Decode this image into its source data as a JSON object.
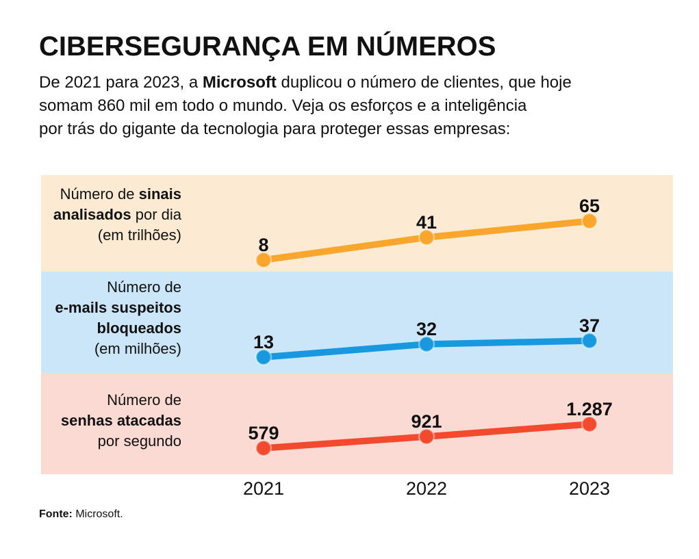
{
  "header": {
    "title": "CIBERSEGURANÇA EM NÚMEROS",
    "intro": {
      "line1_pre": "De 2021 para 2023, a ",
      "line1_bold": "Microsoft",
      "line1_post": " duplicou o número de clientes, que hoje",
      "line2": "somam 860 mil em todo o mundo. Veja os esforços e a inteligência",
      "line3": "por trás do gigante da tecnologia para proteger essas empresas:"
    }
  },
  "chart_data": {
    "type": "line",
    "categories": [
      "2021",
      "2022",
      "2023"
    ],
    "grid": false,
    "legend_position": "row-labels-left",
    "series": [
      {
        "name": "sinais-analisados",
        "label_lines": [
          [
            {
              "text": "Número de ",
              "bold": false
            },
            {
              "text": "sinais",
              "bold": true
            }
          ],
          [
            {
              "text": "analisados",
              "bold": true
            },
            {
              "text": " por dia",
              "bold": false
            }
          ],
          [
            {
              "text": "(em trilhões)",
              "bold": false
            }
          ]
        ],
        "values": [
          8,
          41,
          65
        ],
        "value_labels": [
          "8",
          "41",
          "65"
        ],
        "line_color": "#F8A62C",
        "band_color": "#FCEBD2"
      },
      {
        "name": "emails-suspeitos-bloqueados",
        "label_lines": [
          [
            {
              "text": "Número de",
              "bold": false
            }
          ],
          [
            {
              "text": "e-mails suspeitos",
              "bold": true
            }
          ],
          [
            {
              "text": "bloqueados",
              "bold": true
            }
          ],
          [
            {
              "text": "(em milhões)",
              "bold": false
            }
          ]
        ],
        "values": [
          13,
          32,
          37
        ],
        "value_labels": [
          "13",
          "32",
          "37"
        ],
        "line_color": "#1899DF",
        "band_color": "#CBE6F8"
      },
      {
        "name": "senhas-atacadas",
        "label_lines": [
          [
            {
              "text": "Número de",
              "bold": false
            }
          ],
          [
            {
              "text": "senhas atacadas",
              "bold": true
            }
          ],
          [
            {
              "text": "por segundo",
              "bold": false
            }
          ]
        ],
        "values": [
          579,
          921,
          1287
        ],
        "value_labels": [
          "579",
          "921",
          "1.287"
        ],
        "line_color": "#F34A2F",
        "band_color": "#FBDAD3"
      }
    ]
  },
  "footer": {
    "source_label": "Fonte:",
    "source_text": " Microsoft."
  }
}
